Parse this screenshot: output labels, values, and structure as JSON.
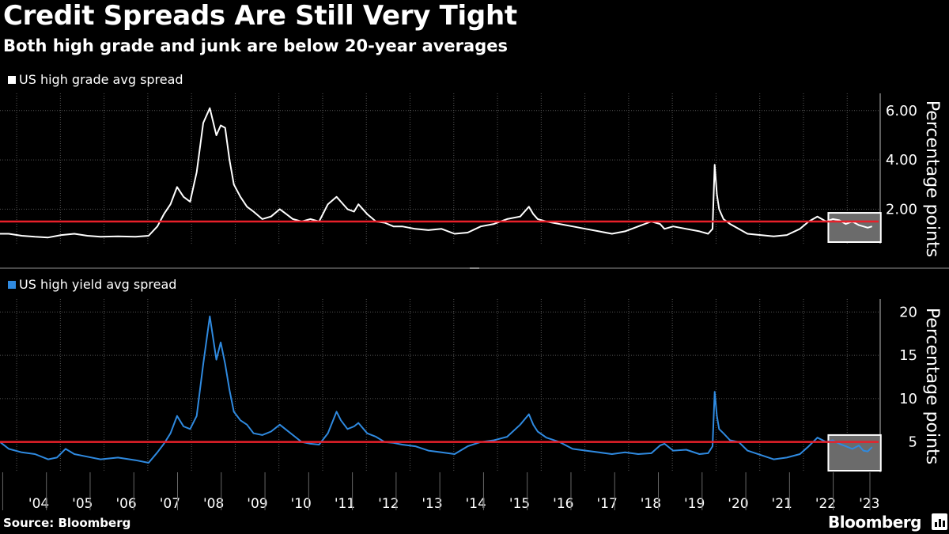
{
  "header": {
    "title": "Credit Spreads Are Still Very Tight",
    "subtitle": "Both high grade and junk are below 20-year averages"
  },
  "footer": {
    "source": "Source: Bloomberg",
    "brand": "Bloomberg"
  },
  "colors": {
    "background": "#000000",
    "high_grade_line": "#ffffff",
    "high_yield_line": "#2f8ae0",
    "average_line": "#e8202a",
    "highlight_box_fill": "#6b6b6b",
    "highlight_box_stroke": "#ffffff",
    "grid": "#555555"
  },
  "chart_data": [
    {
      "type": "line",
      "legend_placement": "top-left",
      "grid": true,
      "ylabel": "Percentage points",
      "ylim": [
        0.6,
        6.7
      ],
      "y_ticks": [
        2,
        4,
        6
      ],
      "y_tick_labels": [
        "2.00",
        "4.00",
        "6.00"
      ],
      "x_ticks": [
        2004,
        2005,
        2006,
        2007,
        2008,
        2009,
        2010,
        2011,
        2012,
        2013,
        2014,
        2015,
        2016,
        2017,
        2018,
        2019,
        2020,
        2021,
        2022,
        2023
      ],
      "x_tick_labels": [
        "'04",
        "'05",
        "'06",
        "'07",
        "'08",
        "'09",
        "'10",
        "'11",
        "'12",
        "'13",
        "'14",
        "'15",
        "'16",
        "'17",
        "'18",
        "'19",
        "'20",
        "'21",
        "'22",
        "'23"
      ],
      "xlim": [
        2003.8,
        2023.9
      ],
      "average_line": 1.5,
      "highlight_box": {
        "x": [
          2022.75,
          2023.95
        ],
        "y": [
          0.6,
          1.85
        ]
      },
      "series": [
        {
          "name": "US high grade avg spread",
          "color": "#ffffff",
          "x": [
            2003.8,
            2004.0,
            2004.3,
            2004.6,
            2004.9,
            2005.2,
            2005.5,
            2005.8,
            2006.1,
            2006.5,
            2006.9,
            2007.2,
            2007.4,
            2007.55,
            2007.7,
            2007.85,
            2008.0,
            2008.15,
            2008.3,
            2008.45,
            2008.6,
            2008.75,
            2008.85,
            2008.95,
            2009.05,
            2009.15,
            2009.3,
            2009.45,
            2009.6,
            2009.8,
            2010.0,
            2010.2,
            2010.35,
            2010.5,
            2010.7,
            2010.9,
            2011.1,
            2011.3,
            2011.5,
            2011.6,
            2011.75,
            2011.9,
            2012.0,
            2012.2,
            2012.4,
            2012.6,
            2012.8,
            2013.0,
            2013.3,
            2013.6,
            2013.9,
            2014.2,
            2014.5,
            2014.8,
            2015.1,
            2015.4,
            2015.7,
            2015.9,
            2016.0,
            2016.1,
            2016.3,
            2016.6,
            2016.9,
            2017.2,
            2017.5,
            2017.8,
            2018.1,
            2018.4,
            2018.7,
            2018.9,
            2019.0,
            2019.2,
            2019.5,
            2019.8,
            2020.0,
            2020.1,
            2020.15,
            2020.2,
            2020.25,
            2020.35,
            2020.5,
            2020.7,
            2020.9,
            2021.2,
            2021.5,
            2021.8,
            2022.1,
            2022.3,
            2022.5,
            2022.7,
            2022.85,
            2023.0,
            2023.15,
            2023.3,
            2023.45,
            2023.55,
            2023.65,
            2023.75
          ],
          "y": [
            1.0,
            1.0,
            0.92,
            0.88,
            0.85,
            0.95,
            1.0,
            0.92,
            0.88,
            0.9,
            0.88,
            0.92,
            1.3,
            1.8,
            2.2,
            2.9,
            2.5,
            2.3,
            3.5,
            5.5,
            6.1,
            5.0,
            5.4,
            5.3,
            4.0,
            3.0,
            2.5,
            2.1,
            1.9,
            1.6,
            1.7,
            2.0,
            1.8,
            1.6,
            1.5,
            1.6,
            1.5,
            2.2,
            2.5,
            2.3,
            2.0,
            1.9,
            2.2,
            1.8,
            1.5,
            1.45,
            1.3,
            1.3,
            1.2,
            1.15,
            1.2,
            1.0,
            1.05,
            1.3,
            1.4,
            1.6,
            1.7,
            2.1,
            1.8,
            1.6,
            1.5,
            1.4,
            1.3,
            1.2,
            1.1,
            1.0,
            1.1,
            1.3,
            1.5,
            1.4,
            1.2,
            1.3,
            1.2,
            1.1,
            1.0,
            1.2,
            3.8,
            2.6,
            2.0,
            1.6,
            1.4,
            1.2,
            1.0,
            0.95,
            0.9,
            0.95,
            1.2,
            1.5,
            1.7,
            1.5,
            1.6,
            1.55,
            1.4,
            1.5,
            1.35,
            1.3,
            1.25,
            1.3
          ]
        }
      ]
    },
    {
      "type": "line",
      "legend_placement": "top-left",
      "grid": true,
      "ylabel": "Percentage points",
      "ylim": [
        1.5,
        21.5
      ],
      "y_ticks": [
        5,
        10,
        15,
        20
      ],
      "y_tick_labels": [
        "5",
        "10",
        "15",
        "20"
      ],
      "x_ticks": [
        2004,
        2005,
        2006,
        2007,
        2008,
        2009,
        2010,
        2011,
        2012,
        2013,
        2014,
        2015,
        2016,
        2017,
        2018,
        2019,
        2020,
        2021,
        2022,
        2023
      ],
      "x_tick_labels": [
        "'04",
        "'05",
        "'06",
        "'07",
        "'08",
        "'09",
        "'10",
        "'11",
        "'12",
        "'13",
        "'14",
        "'15",
        "'16",
        "'17",
        "'18",
        "'19",
        "'20",
        "'21",
        "'22",
        "'23"
      ],
      "xlim": [
        2003.8,
        2023.9
      ],
      "average_line": 5.0,
      "highlight_box": {
        "x": [
          2022.75,
          2023.95
        ],
        "y": [
          1.5,
          5.8
        ]
      },
      "series": [
        {
          "name": "US high yield avg spread",
          "color": "#2f8ae0",
          "x": [
            2003.8,
            2004.0,
            2004.3,
            2004.6,
            2004.9,
            2005.1,
            2005.3,
            2005.5,
            2005.8,
            2006.1,
            2006.5,
            2006.9,
            2007.2,
            2007.4,
            2007.55,
            2007.7,
            2007.85,
            2008.0,
            2008.15,
            2008.3,
            2008.45,
            2008.6,
            2008.75,
            2008.85,
            2008.95,
            2009.05,
            2009.15,
            2009.3,
            2009.45,
            2009.6,
            2009.8,
            2010.0,
            2010.2,
            2010.35,
            2010.5,
            2010.7,
            2010.9,
            2011.1,
            2011.3,
            2011.5,
            2011.6,
            2011.75,
            2011.9,
            2012.0,
            2012.2,
            2012.4,
            2012.6,
            2012.8,
            2013.0,
            2013.3,
            2013.6,
            2013.9,
            2014.2,
            2014.5,
            2014.8,
            2015.1,
            2015.4,
            2015.7,
            2015.9,
            2016.0,
            2016.1,
            2016.3,
            2016.6,
            2016.9,
            2017.2,
            2017.5,
            2017.8,
            2018.1,
            2018.4,
            2018.7,
            2018.9,
            2019.0,
            2019.2,
            2019.5,
            2019.8,
            2020.0,
            2020.1,
            2020.15,
            2020.2,
            2020.25,
            2020.35,
            2020.5,
            2020.7,
            2020.9,
            2021.2,
            2021.5,
            2021.8,
            2022.1,
            2022.3,
            2022.5,
            2022.7,
            2022.85,
            2023.0,
            2023.15,
            2023.3,
            2023.45,
            2023.55,
            2023.65,
            2023.75
          ],
          "y": [
            5.0,
            4.2,
            3.8,
            3.6,
            3.0,
            3.2,
            4.2,
            3.6,
            3.3,
            3.0,
            3.2,
            2.9,
            2.6,
            3.8,
            4.8,
            6.0,
            8.0,
            6.8,
            6.5,
            8.0,
            14.0,
            19.5,
            14.5,
            16.5,
            14.0,
            11.0,
            8.5,
            7.5,
            7.0,
            6.0,
            5.8,
            6.2,
            7.0,
            6.4,
            5.8,
            5.0,
            4.8,
            4.7,
            6.0,
            8.5,
            7.5,
            6.5,
            6.8,
            7.2,
            6.0,
            5.6,
            5.0,
            4.9,
            4.7,
            4.5,
            4.0,
            3.8,
            3.6,
            4.5,
            5.0,
            5.2,
            5.6,
            7.0,
            8.2,
            7.0,
            6.2,
            5.5,
            5.0,
            4.2,
            4.0,
            3.8,
            3.6,
            3.8,
            3.6,
            3.7,
            4.6,
            4.8,
            4.0,
            4.1,
            3.6,
            3.7,
            4.5,
            10.8,
            8.0,
            6.5,
            6.0,
            5.2,
            5.0,
            4.0,
            3.5,
            3.0,
            3.2,
            3.6,
            4.5,
            5.5,
            5.0,
            5.2,
            4.8,
            4.5,
            4.2,
            4.6,
            4.0,
            3.9,
            4.4
          ]
        }
      ]
    }
  ]
}
